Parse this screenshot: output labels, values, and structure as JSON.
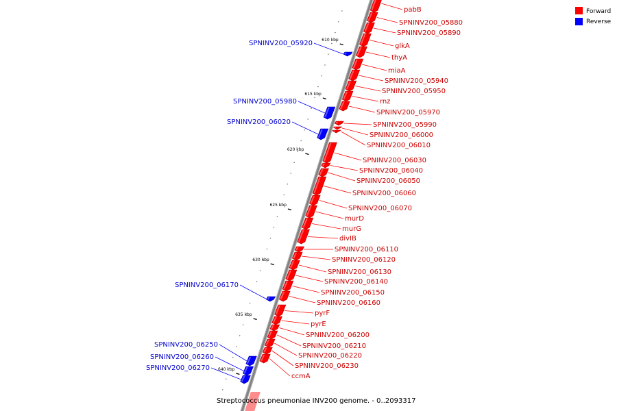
{
  "legend": {
    "items": [
      {
        "label": "Forward",
        "color": "#ff0000"
      },
      {
        "label": "Reverse",
        "color": "#0000ff"
      }
    ]
  },
  "caption": "Streptococcus pneumoniae INV200 genome. - 0..2093317",
  "backbone_color": "#808080",
  "ticks": [
    "610 kbp",
    "615 kbp",
    "620 kbp",
    "625 kbp",
    "630 kbp",
    "635 kbp",
    "640 kbp"
  ],
  "forward_genes": [
    "pabB",
    "SPNINV200_05880",
    "SPNINV200_05890",
    "glkA",
    "thyA",
    "miaA",
    "SPNINV200_05940",
    "SPNINV200_05950",
    "rnz",
    "SPNINV200_05970",
    "SPNINV200_05990",
    "SPNINV200_06000",
    "SPNINV200_06010",
    "SPNINV200_06030",
    "SPNINV200_06040",
    "SPNINV200_06050",
    "SPNINV200_06060",
    "SPNINV200_06070",
    "murD",
    "murG",
    "divIB",
    "SPNINV200_06110",
    "SPNINV200_06120",
    "SPNINV200_06130",
    "SPNINV200_06140",
    "SPNINV200_06150",
    "SPNINV200_06160",
    "pyrF",
    "pyrE",
    "SPNINV200_06200",
    "SPNINV200_06210",
    "SPNINV200_06220",
    "SPNINV200_06230",
    "ccmA"
  ],
  "reverse_genes": [
    "SPNINV200_05920",
    "SPNINV200_05980",
    "SPNINV200_06020",
    "SPNINV200_06170",
    "SPNINV200_06250",
    "SPNINV200_06260",
    "SPNINV200_06270"
  ]
}
